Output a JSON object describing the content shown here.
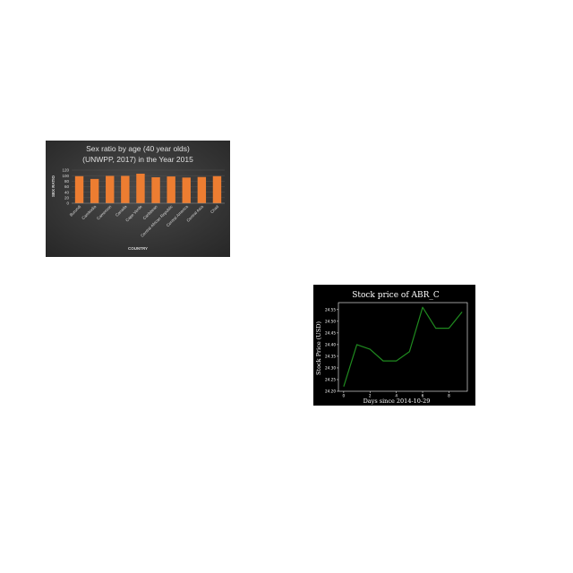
{
  "chart_data": [
    {
      "type": "bar",
      "title": "Sex ratio by age (40 year olds) (UNWPP, 2017) in the Year 2015",
      "title_lines": [
        "Sex ratio by age (40 year olds)",
        "(UNWPP, 2017) in the Year 2015"
      ],
      "xlabel": "COUNTRY",
      "ylabel": "SEX RATIO",
      "categories": [
        "Burundi",
        "Cambodia",
        "Cameroon",
        "Canada",
        "Cape Verde",
        "Caribbean",
        "Central African Republic",
        "Central America",
        "Central Asia",
        "Chad"
      ],
      "values": [
        98,
        88,
        99,
        99,
        107,
        94,
        97,
        93,
        95,
        98
      ],
      "ylim": [
        0,
        120
      ],
      "yticks": [
        "0",
        "20",
        "40",
        "60",
        "80",
        "100",
        "120"
      ],
      "grid": true,
      "colors": {
        "background": "#3a3a3a",
        "bar": "#ed7d31",
        "text": "#d9d9d9",
        "grid": "#595959"
      }
    },
    {
      "type": "line",
      "title": "Stock price of ABR_C",
      "xlabel": "Days since 2014-10-29",
      "ylabel": "Stock Price (USD)",
      "x": [
        0,
        1,
        2,
        3,
        4,
        5,
        6,
        7,
        8,
        9
      ],
      "y": [
        24.22,
        24.4,
        24.38,
        24.33,
        24.33,
        24.37,
        24.56,
        24.47,
        24.47,
        24.54
      ],
      "xlim": [
        -0.4,
        9.4
      ],
      "ylim": [
        24.2,
        24.58
      ],
      "xticks": [
        "0",
        "2",
        "4",
        "6",
        "8"
      ],
      "yticks": [
        "24.20",
        "24.25",
        "24.30",
        "24.35",
        "24.40",
        "24.45",
        "24.50",
        "24.55"
      ],
      "grid": false,
      "colors": {
        "background": "#000000",
        "line": "#1f8a1f",
        "text": "#ffffff",
        "axis": "#ffffff"
      }
    }
  ]
}
